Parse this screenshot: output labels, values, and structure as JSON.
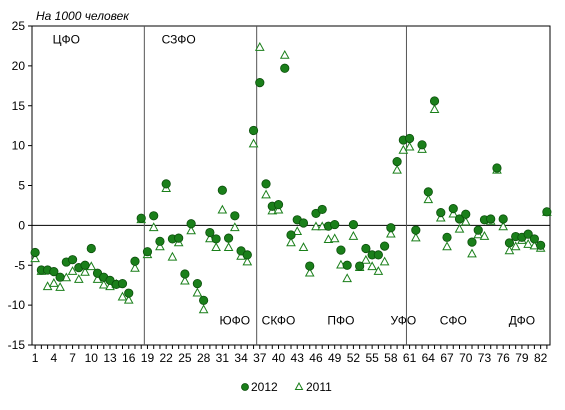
{
  "chart_data": {
    "type": "scatter",
    "ylabel": "На 1000 человек",
    "ylim": [
      -15,
      25
    ],
    "yticks": [
      -15,
      -10,
      -5,
      0,
      5,
      10,
      15,
      20,
      25
    ],
    "xlim": [
      0.5,
      83.5
    ],
    "xticks": [
      1,
      4,
      7,
      10,
      13,
      16,
      19,
      22,
      25,
      28,
      31,
      34,
      37,
      40,
      43,
      46,
      49,
      52,
      55,
      58,
      61,
      64,
      67,
      70,
      73,
      76,
      79,
      82
    ],
    "grid": {
      "x": false,
      "y": false,
      "zero_line": true
    },
    "legend_position": "bottom",
    "colors": {
      "series_2012": "#1a7f1a",
      "series_2012_stroke": "#0b4f0b",
      "series_2011": "#1a7f1a",
      "separator": "#555555"
    },
    "districts": [
      {
        "label": "ЦФО",
        "x": 6,
        "y": 22.8
      },
      {
        "label": "СЗФО",
        "x": 24,
        "y": 22.8
      },
      {
        "label": "ЮФО",
        "x": 33,
        "y": -12.4
      },
      {
        "label": "СКФО",
        "x": 40,
        "y": -12.4
      },
      {
        "label": "ПФО",
        "x": 50,
        "y": -12.4
      },
      {
        "label": "УФО",
        "x": 60,
        "y": -12.4
      },
      {
        "label": "СФО",
        "x": 68,
        "y": -12.4
      },
      {
        "label": "ДФО",
        "x": 79,
        "y": -12.4
      }
    ],
    "separators": [
      18.5,
      36.5,
      60.5
    ],
    "series": [
      {
        "name": "2012",
        "marker": "circle",
        "x": [
          1,
          2,
          3,
          4,
          5,
          6,
          7,
          8,
          9,
          10,
          11,
          12,
          13,
          14,
          15,
          16,
          17,
          18,
          19,
          20,
          21,
          22,
          23,
          24,
          25,
          26,
          27,
          28,
          29,
          30,
          31,
          32,
          33,
          34,
          35,
          36,
          37,
          38,
          39,
          40,
          41,
          42,
          43,
          44,
          45,
          46,
          47,
          48,
          49,
          50,
          51,
          52,
          53,
          54,
          55,
          56,
          57,
          58,
          59,
          60,
          61,
          62,
          63,
          64,
          65,
          66,
          67,
          68,
          69,
          70,
          71,
          72,
          73,
          74,
          75,
          76,
          77,
          78,
          79,
          80,
          81,
          82,
          83
        ],
        "y": [
          -3.4,
          -5.6,
          -5.6,
          -5.8,
          -6.5,
          -4.6,
          -4.3,
          -5.3,
          -5.0,
          -2.9,
          -6.0,
          -6.5,
          -6.9,
          -7.4,
          -7.3,
          -8.5,
          -4.5,
          0.9,
          -3.3,
          1.2,
          -2.0,
          5.2,
          -1.7,
          -1.6,
          -6.1,
          0.2,
          -7.3,
          -9.4,
          -0.9,
          -1.7,
          4.4,
          -1.6,
          1.2,
          -3.2,
          -3.7,
          11.9,
          17.9,
          5.2,
          2.4,
          2.6,
          19.7,
          -1.2,
          0.7,
          0.3,
          -5.1,
          1.5,
          2.0,
          -0.1,
          0.1,
          -3.1,
          -5.0,
          0.1,
          -5.1,
          -2.9,
          -3.7,
          -3.7,
          -2.6,
          -0.3,
          8.0,
          10.7,
          10.9,
          -0.6,
          10.1,
          4.2,
          15.6,
          1.6,
          -1.5,
          2.1,
          0.8,
          1.4,
          -2.1,
          -0.6,
          0.7,
          0.8,
          7.2,
          0.8,
          -2.2,
          -1.4,
          -1.5,
          -1.1,
          -1.7,
          -2.5,
          1.7
        ]
      },
      {
        "name": "2011",
        "marker": "triangle",
        "x": [
          1,
          2,
          3,
          4,
          5,
          6,
          7,
          8,
          9,
          10,
          11,
          12,
          13,
          14,
          15,
          16,
          17,
          18,
          19,
          20,
          21,
          22,
          23,
          24,
          25,
          26,
          27,
          28,
          29,
          30,
          31,
          32,
          33,
          34,
          35,
          36,
          37,
          38,
          39,
          40,
          41,
          42,
          43,
          44,
          45,
          46,
          47,
          48,
          49,
          50,
          51,
          52,
          53,
          54,
          55,
          56,
          57,
          58,
          59,
          60,
          61,
          62,
          63,
          64,
          65,
          66,
          67,
          68,
          69,
          70,
          71,
          72,
          73,
          74,
          75,
          76,
          77,
          78,
          79,
          80,
          81,
          82,
          83
        ],
        "y": [
          -4.2,
          -5.8,
          -7.7,
          -7.3,
          -7.8,
          -6.6,
          -5.8,
          -6.8,
          -5.9,
          -5.2,
          -6.8,
          -7.5,
          -7.7,
          -7.4,
          -9.0,
          -9.4,
          -5.4,
          0.7,
          -3.7,
          -0.3,
          -2.7,
          4.6,
          -4.0,
          -2.2,
          -7.0,
          -0.7,
          -8.5,
          -10.6,
          -1.7,
          -2.8,
          1.9,
          -2.8,
          -0.3,
          -3.9,
          -4.6,
          10.2,
          22.3,
          3.8,
          1.8,
          1.9,
          21.3,
          -2.2,
          -0.8,
          -2.8,
          -6.0,
          -0.2,
          -0.2,
          -1.8,
          -1.7,
          -5.0,
          -6.7,
          -1.4,
          -5.3,
          -4.4,
          -5.2,
          -5.8,
          -4.6,
          -1.1,
          6.9,
          9.4,
          9.8,
          -1.6,
          9.5,
          3.2,
          14.5,
          0.9,
          -2.7,
          1.4,
          -0.5,
          0.4,
          -3.6,
          -1.2,
          -1.4,
          0.5,
          6.9,
          -0.2,
          -3.2,
          -2.7,
          -1.9,
          -2.4,
          -2.6,
          -2.9,
          1.6
        ]
      }
    ]
  }
}
